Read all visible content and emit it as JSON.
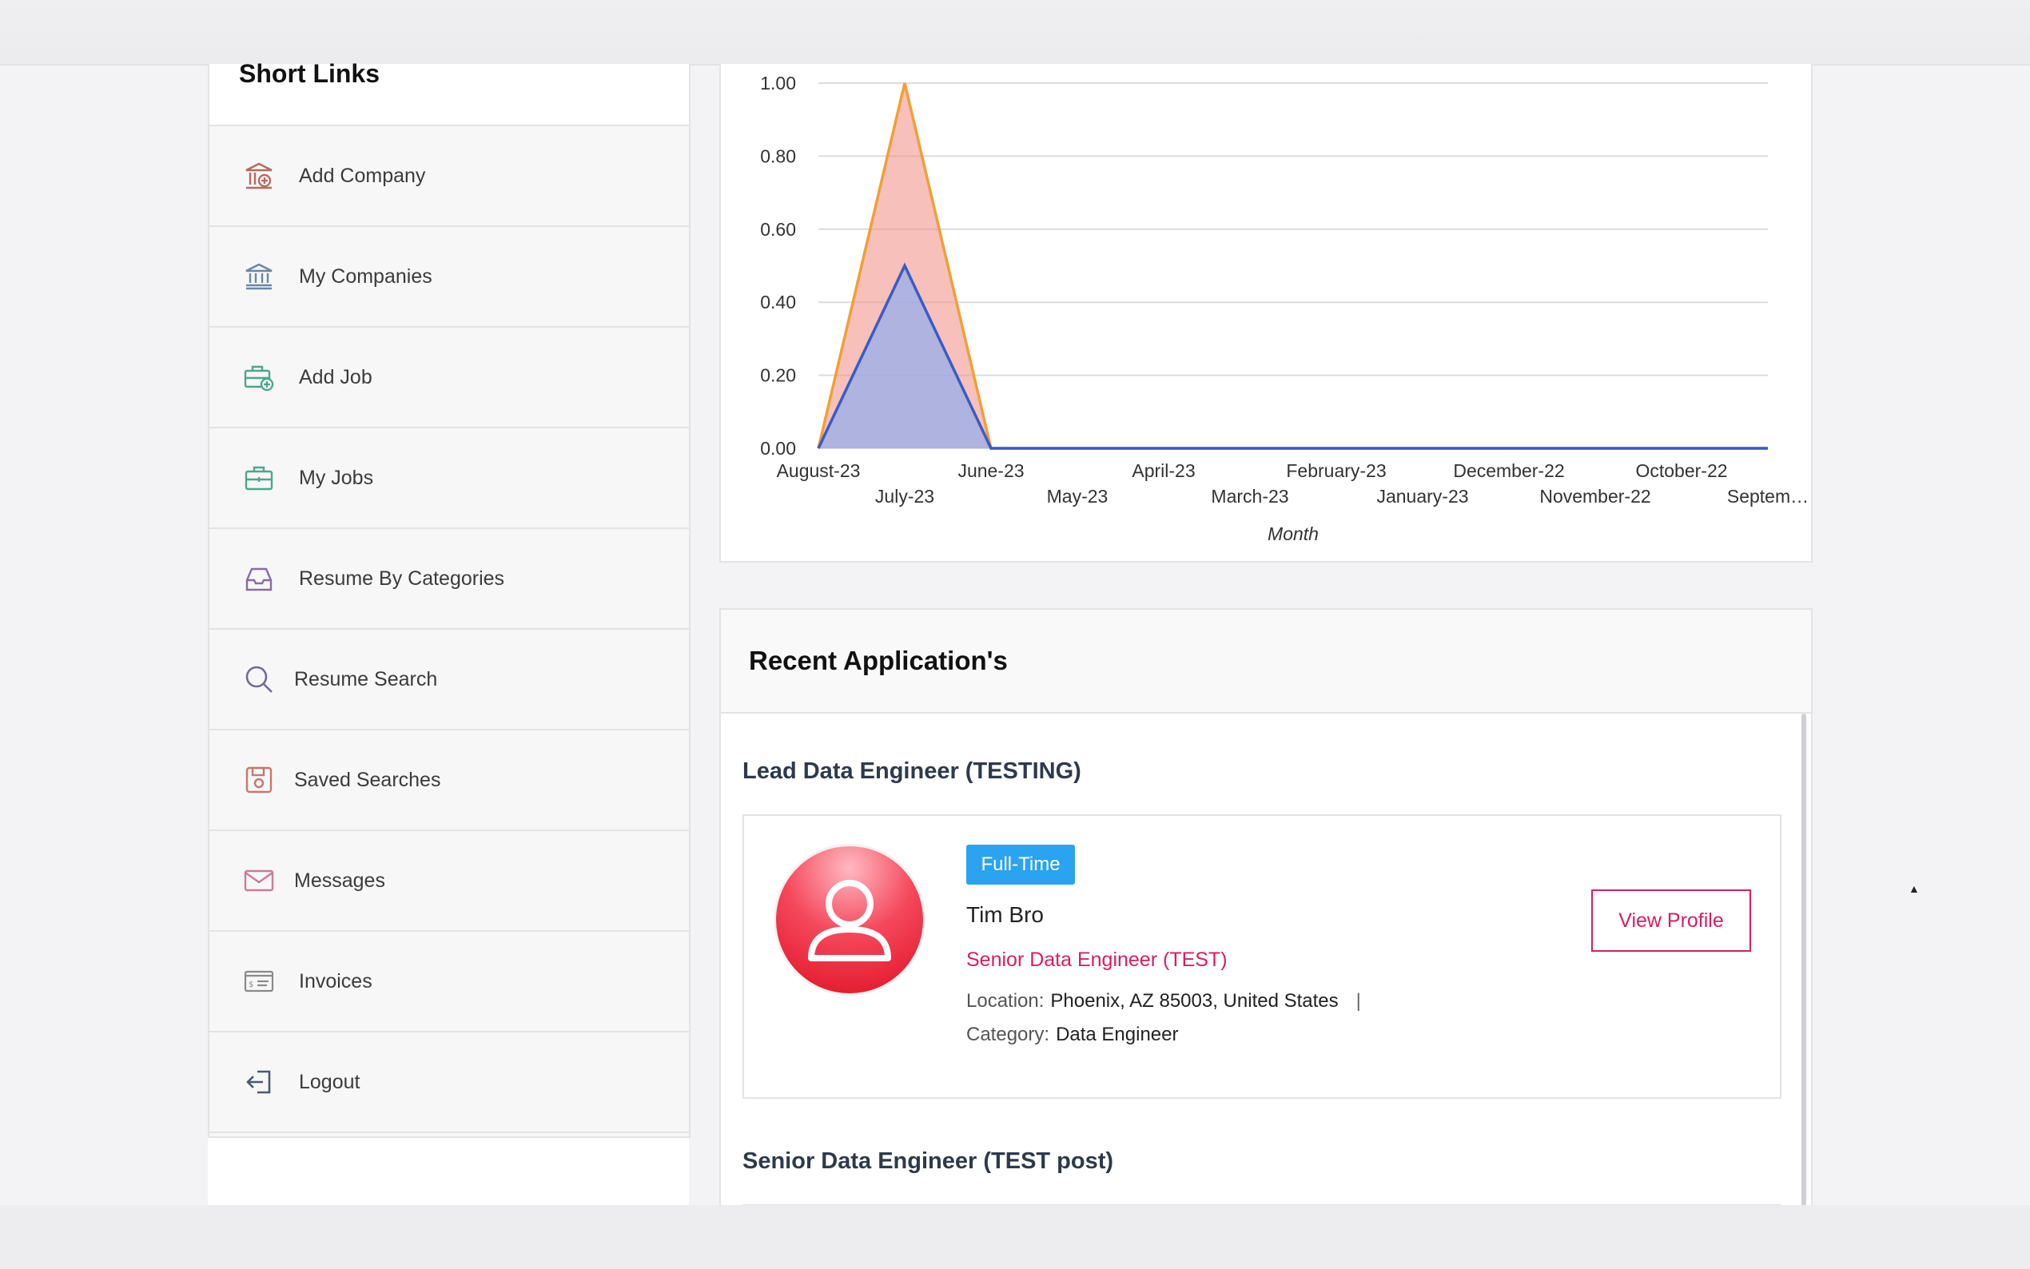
{
  "sidebar": {
    "title": "Short Links",
    "items": [
      {
        "label": "Add Company",
        "icon": "add-company-icon"
      },
      {
        "label": "My Companies",
        "icon": "bank-icon"
      },
      {
        "label": "Add Job",
        "icon": "add-briefcase-icon"
      },
      {
        "label": "My Jobs",
        "icon": "briefcase-icon"
      },
      {
        "label": "Resume By Categories",
        "icon": "inbox-tray-icon"
      },
      {
        "label": "Resume Search",
        "icon": "search-icon"
      },
      {
        "label": "Saved Searches",
        "icon": "save-icon"
      },
      {
        "label": "Messages",
        "icon": "envelope-icon"
      },
      {
        "label": "Invoices",
        "icon": "invoice-icon"
      },
      {
        "label": "Logout",
        "icon": "logout-icon"
      }
    ]
  },
  "chart_data": {
    "type": "area",
    "x": [
      "August-23",
      "July-23",
      "June-23",
      "May-23",
      "April-23",
      "March-23",
      "February-23",
      "January-23",
      "December-22",
      "November-22",
      "October-22",
      "Septem…"
    ],
    "series": [
      {
        "values": [
          0,
          1,
          0,
          0,
          0,
          0,
          0,
          0,
          0,
          0,
          0,
          0
        ],
        "color": "#f0a036"
      },
      {
        "values": [
          0,
          0.5,
          0,
          0,
          0,
          0,
          0,
          0,
          0,
          0,
          0,
          0
        ],
        "color": "#3b5bc4"
      }
    ],
    "yticks": [
      "0.00",
      "0.20",
      "0.40",
      "0.60",
      "0.80",
      "1.00"
    ],
    "ylim": [
      0,
      1
    ],
    "xlabel": "Month",
    "ylabel": "",
    "title": "",
    "grid": true
  },
  "recent": {
    "heading": "Recent Application's",
    "applications": [
      {
        "job_title": "Lead Data Engineer (TESTING)",
        "badge": "Full-Time",
        "name": "Tim Bro",
        "role": "Senior Data Engineer (TEST)",
        "location_label": "Location:",
        "location_value": "Phoenix, AZ 85003, United States",
        "separator": "|",
        "category_label": "Category:",
        "category_value": "Data Engineer",
        "button": "View Profile"
      },
      {
        "job_title": "Senior Data Engineer (TEST post)"
      }
    ]
  },
  "colors": {
    "accent": "#d61e64",
    "badge": "#2aa3f0",
    "area_orange": "#f0a036",
    "area_blue": "#3b5bc4"
  }
}
